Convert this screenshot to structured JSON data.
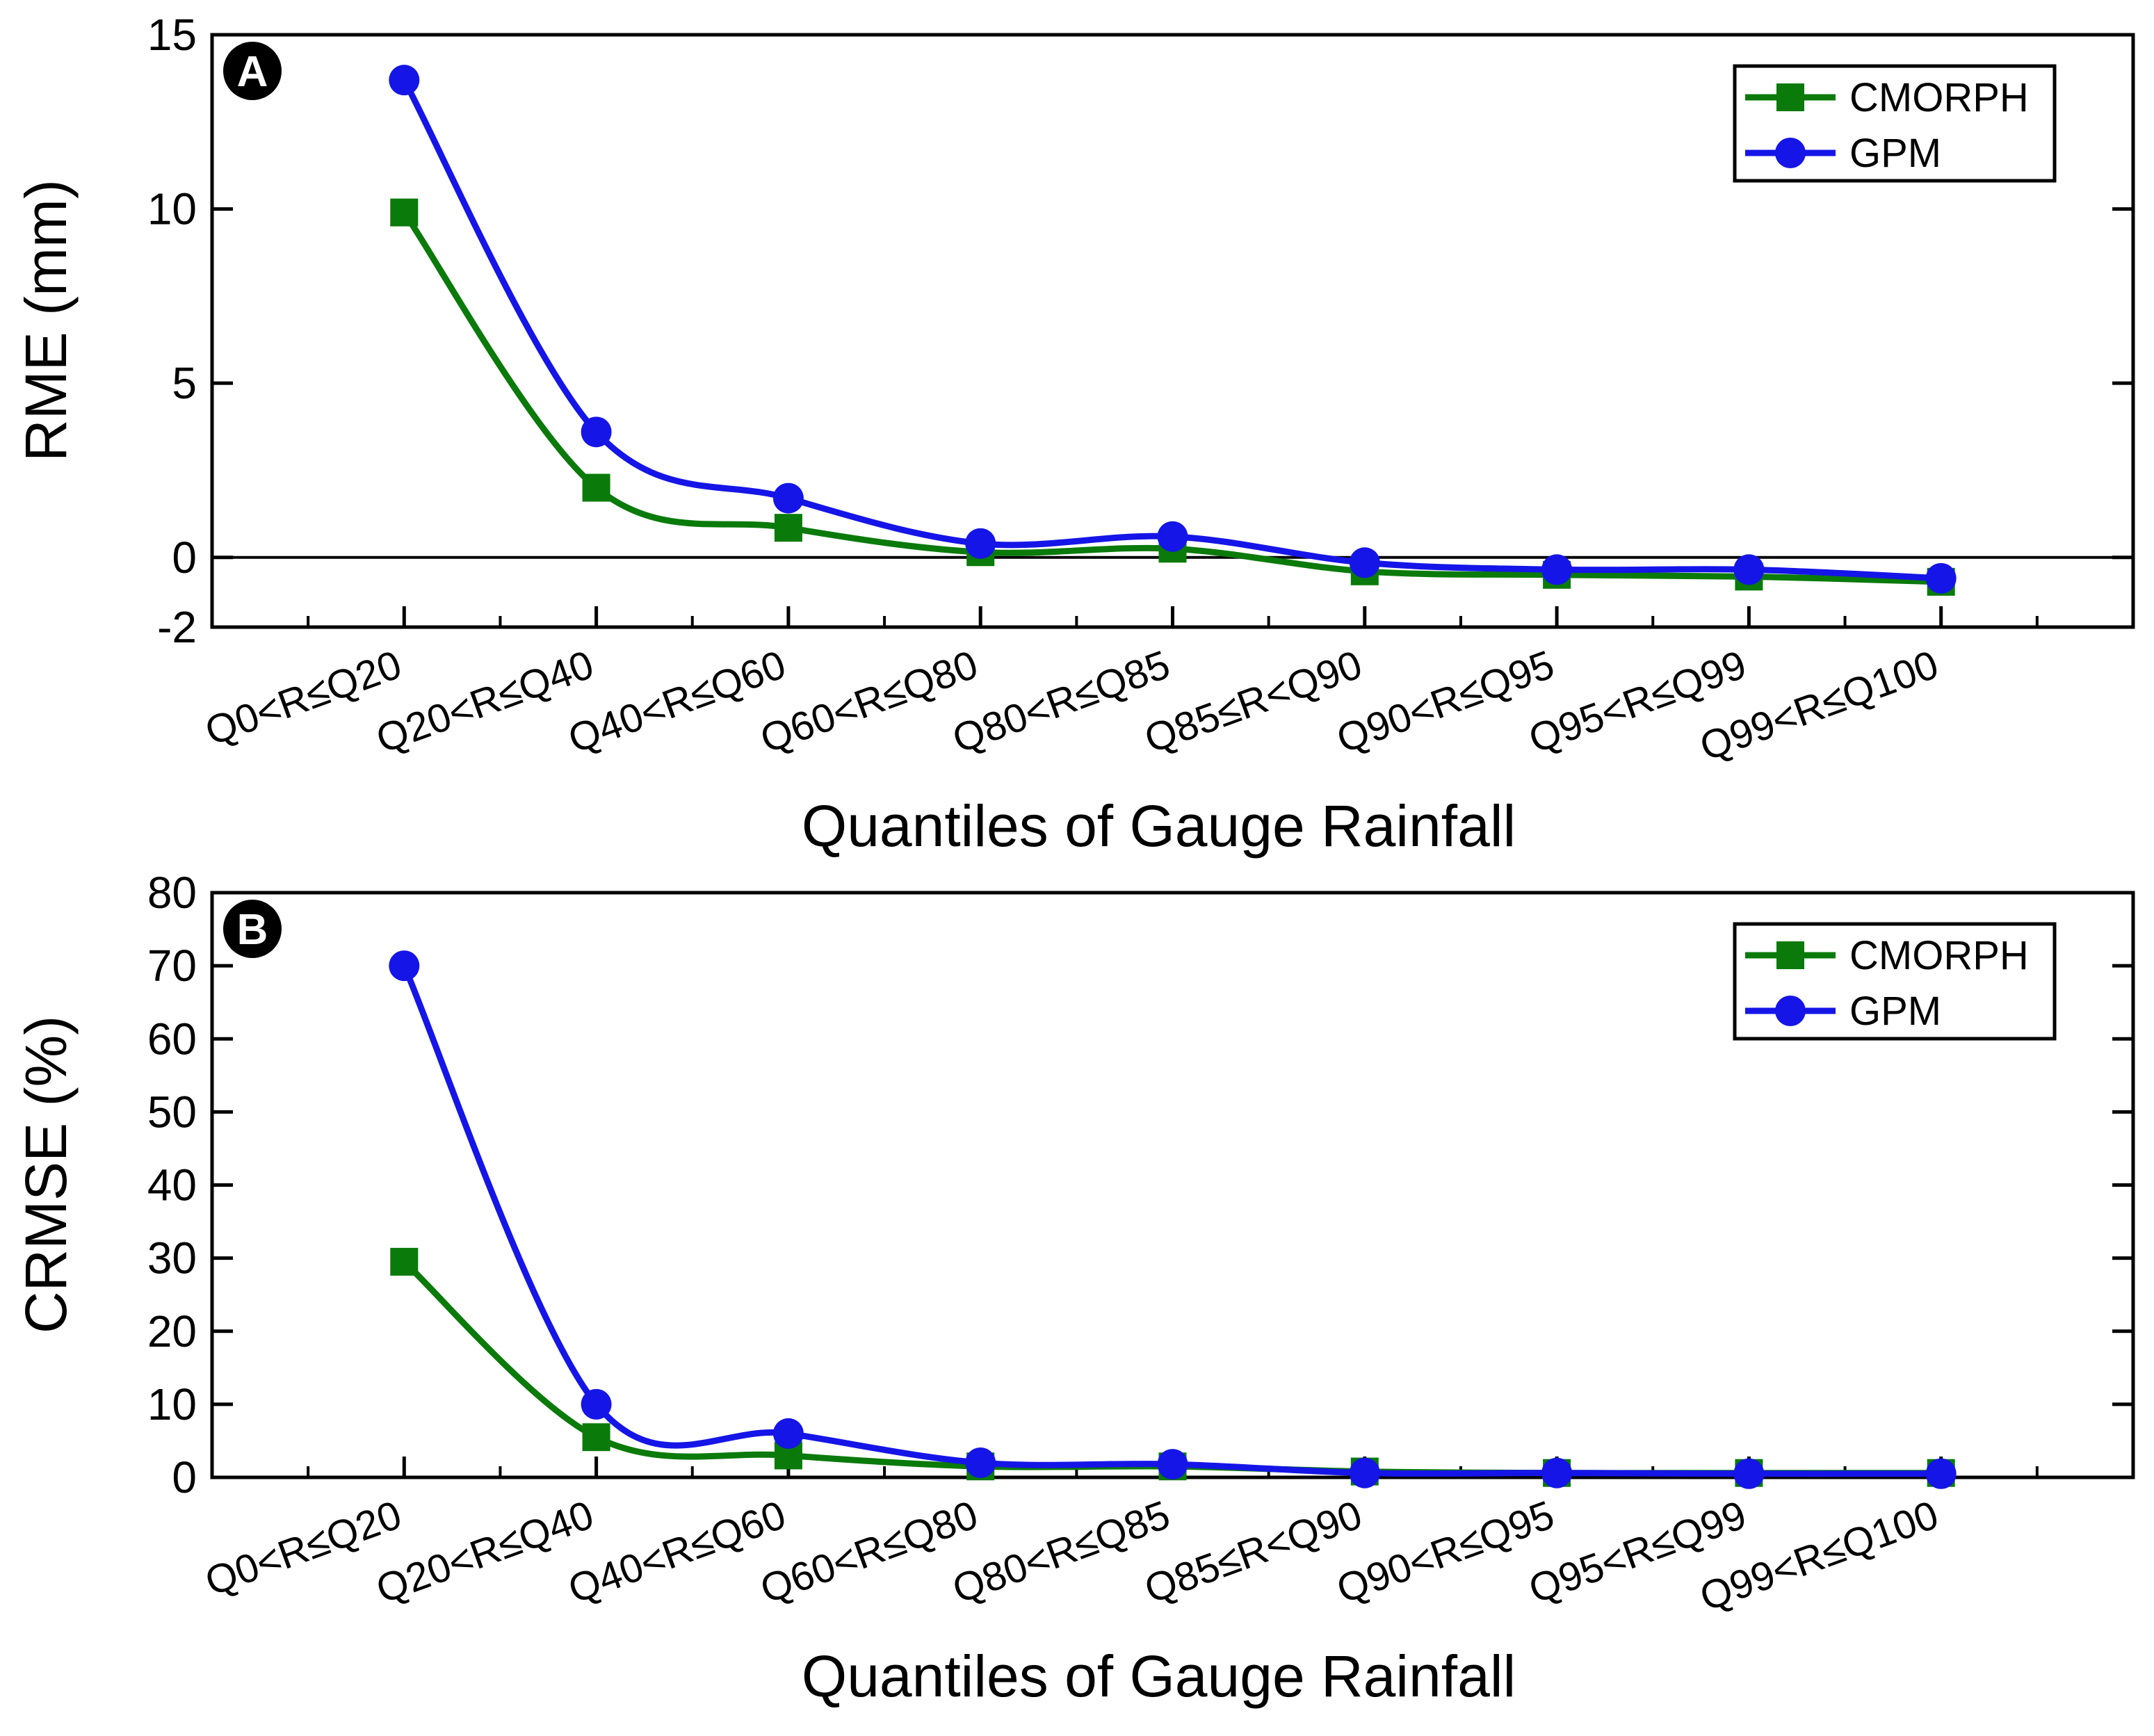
{
  "chart_data": [
    {
      "type": "line",
      "panel_label": "A",
      "title": "",
      "xlabel": "Quantiles of Gauge Rainfall",
      "ylabel": "RME (mm)",
      "ylim": [
        -2,
        15
      ],
      "yticks": [
        -2,
        0,
        5,
        10,
        15
      ],
      "zero_line": true,
      "legend_position": "top-right",
      "categories": [
        "Q0<R≤Q20",
        "Q20<R≤Q40",
        "Q40<R≤Q60",
        "Q60<R≤Q80",
        "Q80<R≤Q85",
        "Q85≤R<Q90",
        "Q90<R≤Q95",
        "Q95<R≤Q99",
        "Q99<R≤Q100"
      ],
      "series": [
        {
          "name": "CMORPH",
          "color": "#0a7a0a",
          "marker": "square",
          "values": [
            9.9,
            2.0,
            0.85,
            0.15,
            0.25,
            -0.4,
            -0.5,
            -0.55,
            -0.7
          ]
        },
        {
          "name": "GPM",
          "color": "#1515e8",
          "marker": "circle",
          "values": [
            13.7,
            3.6,
            1.7,
            0.4,
            0.6,
            -0.15,
            -0.35,
            -0.35,
            -0.6
          ]
        }
      ]
    },
    {
      "type": "line",
      "panel_label": "B",
      "title": "",
      "xlabel": "Quantiles of Gauge Rainfall",
      "ylabel": "CRMSE (%)",
      "ylim": [
        0,
        80
      ],
      "yticks": [
        0,
        10,
        20,
        30,
        40,
        50,
        60,
        70,
        80
      ],
      "zero_line": false,
      "legend_position": "top-right",
      "categories": [
        "Q0<R≤Q20",
        "Q20<R≤Q40",
        "Q40<R≤Q60",
        "Q60<R≤Q80",
        "Q80<R≤Q85",
        "Q85≤R<Q90",
        "Q90<R≤Q95",
        "Q95<R≤Q99",
        "Q99<R≤Q100"
      ],
      "series": [
        {
          "name": "CMORPH",
          "color": "#0a7a0a",
          "marker": "square",
          "values": [
            29.5,
            5.5,
            3.0,
            1.5,
            1.5,
            0.8,
            0.6,
            0.6,
            0.6
          ]
        },
        {
          "name": "GPM",
          "color": "#1515e8",
          "marker": "circle",
          "values": [
            70.0,
            10.0,
            6.0,
            2.0,
            1.8,
            0.6,
            0.6,
            0.5,
            0.5
          ]
        }
      ]
    }
  ]
}
